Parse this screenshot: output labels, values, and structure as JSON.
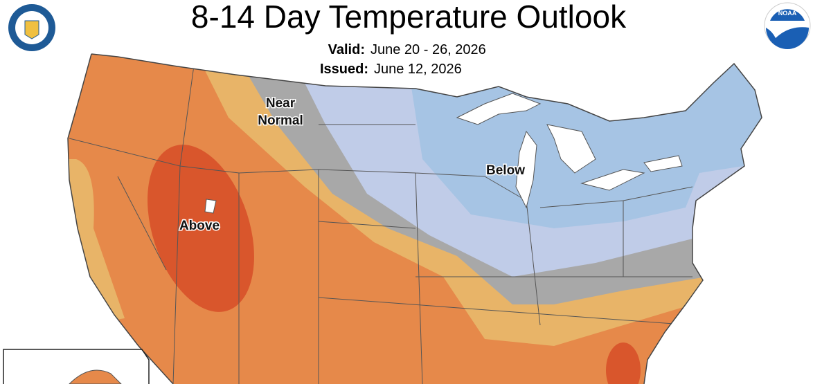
{
  "header": {
    "title": "8-14 Day Temperature Outlook",
    "valid_label": "Valid:",
    "valid_dates": "June 20 - 26, 2026",
    "issued_label": "Issued:",
    "issued_date": "June 12, 2026"
  },
  "logos": {
    "noaa": "NOAA"
  },
  "map": {
    "labels": {
      "near_normal": [
        "Near",
        "Normal"
      ],
      "above": "Above",
      "below": "Below"
    }
  }
}
